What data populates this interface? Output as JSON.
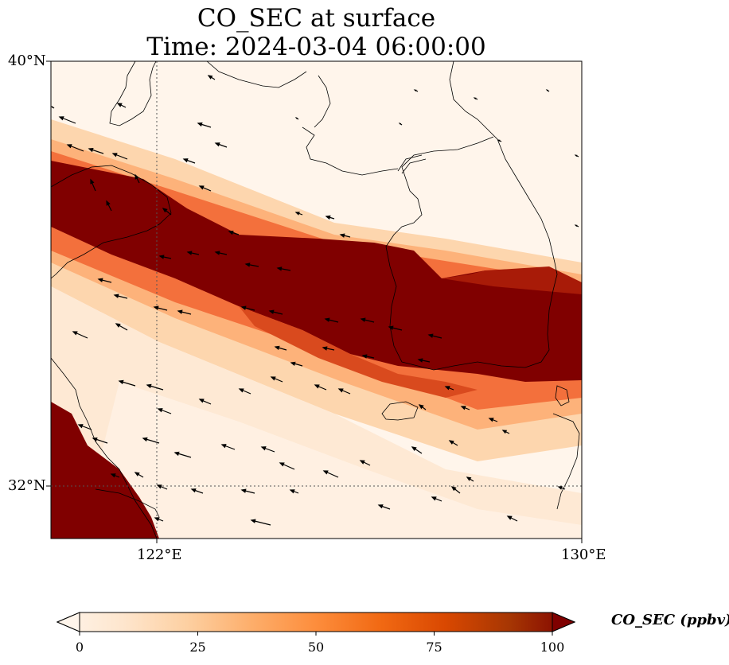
{
  "title": {
    "line1": "CO_SEC at surface",
    "line2": "Time: 2024-03-04 06:00:00"
  },
  "axes": {
    "lat_ticks": [
      "40°N",
      "32°N"
    ],
    "lon_ticks": [
      "122°E",
      "130°E"
    ],
    "lat_range": [
      31,
      40
    ],
    "lon_range": [
      120,
      130
    ],
    "gridlines": "dotted at 122°E and 32°N"
  },
  "colorbar": {
    "label": "CO_SEC (ppbv)",
    "ticks": [
      "0",
      "25",
      "50",
      "75",
      "100"
    ],
    "range": [
      0,
      100
    ],
    "extend": "both",
    "colormap": [
      "#fff5eb",
      "#fee6ce",
      "#fdd0a2",
      "#fdae6b",
      "#fd8d3c",
      "#f16913",
      "#d94801",
      "#a63603",
      "#7f0000"
    ]
  },
  "field": {
    "description_units": "ppbv",
    "max_band_value": 100
  },
  "wind_vectors": {
    "dominant_direction": "from east-southeast toward west-northwest"
  }
}
